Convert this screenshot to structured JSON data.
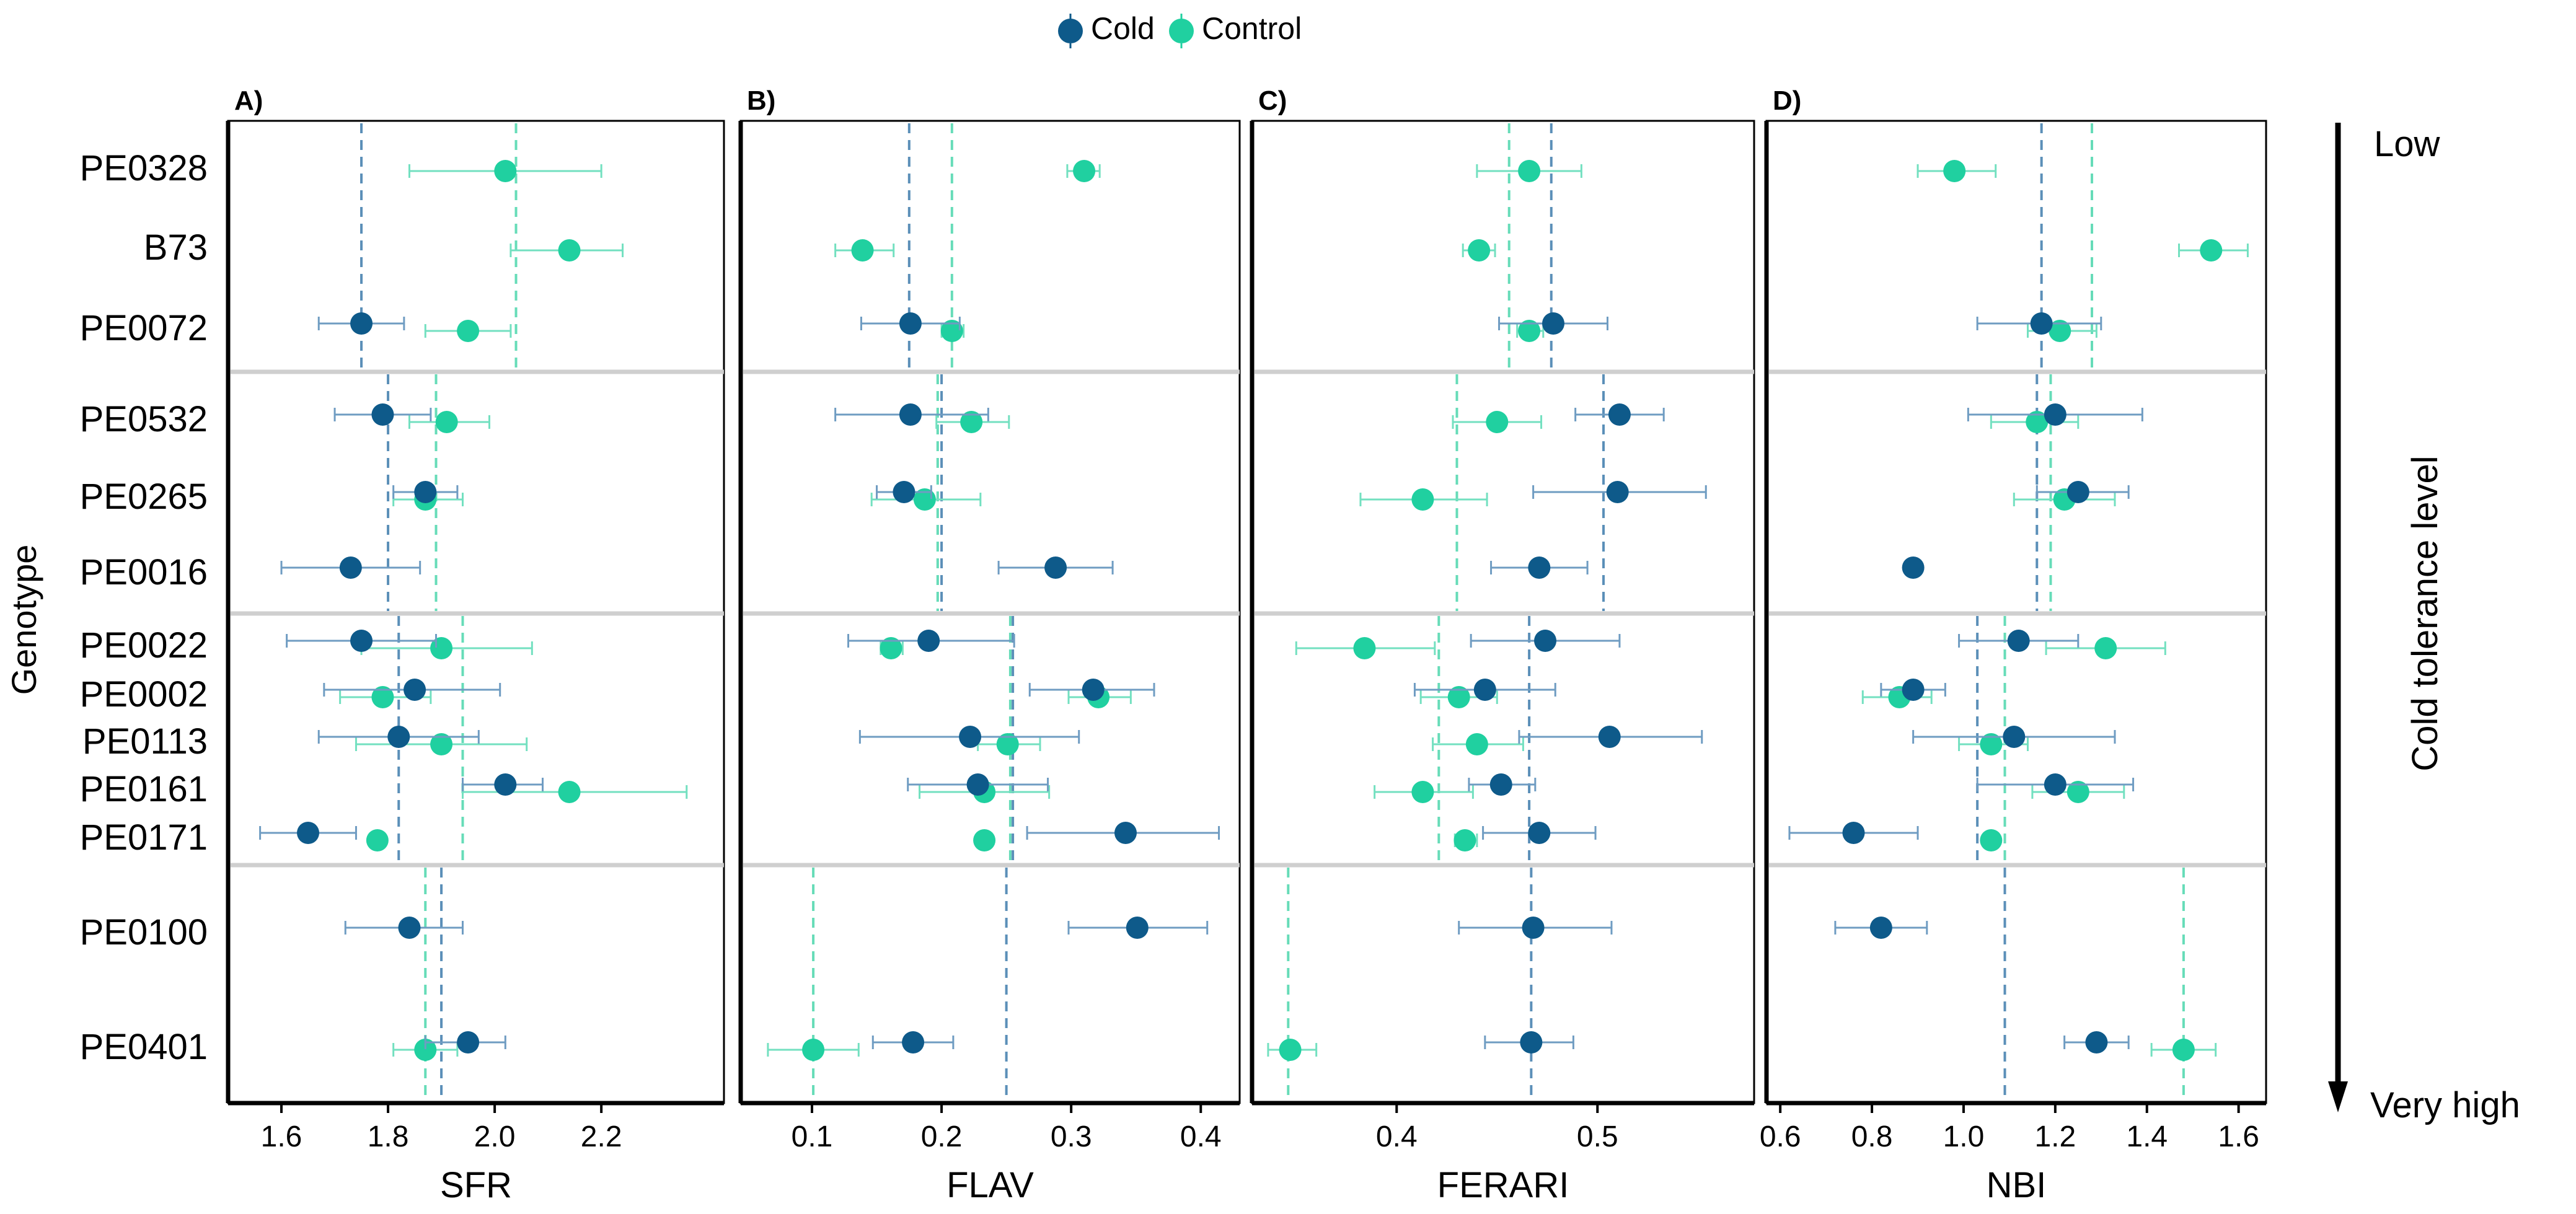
{
  "figure": {
    "legend": {
      "items": [
        {
          "label": "Cold",
          "color": "#0e5a8a"
        },
        {
          "label": "Control",
          "color": "#20d0a0"
        }
      ]
    },
    "y_axis_title": "Genotype",
    "side_axis": {
      "title": "Cold tolerance level",
      "top_label": "Low",
      "bottom_label": "Very high"
    }
  },
  "chart_data": {
    "type": "scatter",
    "genotypes": [
      "PE0328",
      "B73",
      "PE0072",
      "PE0532",
      "PE0265",
      "PE0016",
      "PE0022",
      "PE0002",
      "PE0113",
      "PE0161",
      "PE0171",
      "PE0100",
      "PE0401"
    ],
    "groups": [
      {
        "members": [
          "PE0328",
          "B73",
          "PE0072"
        ]
      },
      {
        "members": [
          "PE0532",
          "PE0265",
          "PE0016"
        ]
      },
      {
        "members": [
          "PE0022",
          "PE0002",
          "PE0113",
          "PE0161",
          "PE0171"
        ]
      },
      {
        "members": [
          "PE0100",
          "PE0401"
        ]
      }
    ],
    "panels": [
      {
        "tag": "A)",
        "xlabel": "SFR",
        "xlim": [
          1.5,
          2.43
        ],
        "ticks": [
          1.6,
          1.8,
          2.0,
          2.2
        ],
        "tick_labels": [
          "1.6",
          "1.8",
          "2.0",
          "2.2"
        ],
        "group_means": [
          {
            "cold": 1.75,
            "control": 2.04
          },
          {
            "cold": 1.8,
            "control": 1.89
          },
          {
            "cold": 1.82,
            "control": 1.94
          },
          {
            "cold": 1.9,
            "control": 1.87
          }
        ],
        "points": {
          "PE0328": {
            "control": [
              2.02,
              1.84,
              2.2
            ]
          },
          "B73": {
            "control": [
              2.14,
              2.03,
              2.24
            ]
          },
          "PE0072": {
            "cold": [
              1.75,
              1.67,
              1.83
            ],
            "control": [
              1.95,
              1.87,
              2.03
            ]
          },
          "PE0532": {
            "cold": [
              1.79,
              1.7,
              1.88
            ],
            "control": [
              1.91,
              1.84,
              1.99
            ]
          },
          "PE0265": {
            "cold": [
              1.87,
              1.81,
              1.93
            ],
            "control": [
              1.87,
              1.81,
              1.94
            ]
          },
          "PE0016": {
            "cold": [
              1.73,
              1.6,
              1.86
            ]
          },
          "PE0022": {
            "cold": [
              1.75,
              1.61,
              1.89
            ],
            "control": [
              1.9,
              1.75,
              2.07
            ]
          },
          "PE0002": {
            "cold": [
              1.85,
              1.68,
              2.01
            ],
            "control": [
              1.79,
              1.71,
              1.88
            ]
          },
          "PE0113": {
            "cold": [
              1.82,
              1.67,
              1.97
            ],
            "control": [
              1.9,
              1.74,
              2.06
            ]
          },
          "PE0161": {
            "cold": [
              2.02,
              1.94,
              2.09
            ],
            "control": [
              2.14,
              1.94,
              2.36
            ]
          },
          "PE0171": {
            "cold": [
              1.65,
              1.56,
              1.74
            ],
            "control": [
              1.78
            ]
          },
          "PE0100": {
            "cold": [
              1.84,
              1.72,
              1.94
            ]
          },
          "PE0401": {
            "cold": [
              1.95,
              1.87,
              2.02
            ],
            "control": [
              1.87,
              1.81,
              1.93
            ]
          }
        }
      },
      {
        "tag": "B)",
        "xlabel": "FLAV",
        "xlim": [
          0.045,
          0.43
        ],
        "ticks": [
          0.1,
          0.2,
          0.3,
          0.4
        ],
        "tick_labels": [
          "0.1",
          "0.2",
          "0.3",
          "0.4"
        ],
        "group_means": [
          {
            "cold": 0.175,
            "control": 0.208
          },
          {
            "cold": 0.2,
            "control": 0.197
          },
          {
            "cold": 0.255,
            "control": 0.253
          },
          {
            "cold": 0.25,
            "control": 0.101
          }
        ],
        "points": {
          "PE0328": {
            "control": [
              0.31,
              0.297,
              0.322
            ]
          },
          "B73": {
            "control": [
              0.139,
              0.118,
              0.163
            ]
          },
          "PE0072": {
            "cold": [
              0.176,
              0.138,
              0.214
            ],
            "control": [
              0.208,
              0.2,
              0.217
            ]
          },
          "PE0532": {
            "cold": [
              0.176,
              0.118,
              0.236
            ],
            "control": [
              0.223,
              0.196,
              0.252
            ]
          },
          "PE0265": {
            "cold": [
              0.171,
              0.15,
              0.192
            ],
            "control": [
              0.187,
              0.146,
              0.23
            ]
          },
          "PE0016": {
            "cold": [
              0.288,
              0.244,
              0.332
            ]
          },
          "PE0022": {
            "cold": [
              0.19,
              0.128,
              0.256
            ],
            "control": [
              0.161,
              0.153,
              0.17
            ]
          },
          "PE0002": {
            "cold": [
              0.317,
              0.268,
              0.364
            ],
            "control": [
              0.321,
              0.298,
              0.346
            ]
          },
          "PE0113": {
            "cold": [
              0.222,
              0.137,
              0.306
            ],
            "control": [
              0.251,
              0.228,
              0.276
            ]
          },
          "PE0161": {
            "cold": [
              0.228,
              0.174,
              0.282
            ],
            "control": [
              0.233,
              0.183,
              0.283
            ]
          },
          "PE0171": {
            "cold": [
              0.342,
              0.266,
              0.414
            ],
            "control": [
              0.233
            ]
          },
          "PE0100": {
            "cold": [
              0.351,
              0.298,
              0.405
            ]
          },
          "PE0401": {
            "cold": [
              0.178,
              0.147,
              0.209
            ],
            "control": [
              0.101,
              0.066,
              0.136
            ]
          }
        }
      },
      {
        "tag": "C)",
        "xlabel": "FERARI",
        "xlim": [
          0.328,
          0.578
        ],
        "ticks": [
          0.4,
          0.5
        ],
        "tick_labels": [
          "0.4",
          "0.5"
        ],
        "group_means": [
          {
            "cold": 0.477,
            "control": 0.456
          },
          {
            "cold": 0.503,
            "control": 0.43
          },
          {
            "cold": 0.466,
            "control": 0.421
          },
          {
            "cold": 0.467,
            "control": 0.346
          }
        ],
        "points": {
          "PE0328": {
            "control": [
              0.466,
              0.44,
              0.492
            ]
          },
          "B73": {
            "control": [
              0.441,
              0.433,
              0.449
            ]
          },
          "PE0072": {
            "cold": [
              0.478,
              0.451,
              0.505
            ],
            "control": [
              0.466,
              0.46,
              0.473
            ]
          },
          "PE0532": {
            "cold": [
              0.511,
              0.489,
              0.533
            ],
            "control": [
              0.45,
              0.428,
              0.472
            ]
          },
          "PE0265": {
            "cold": [
              0.51,
              0.468,
              0.554
            ],
            "control": [
              0.413,
              0.382,
              0.445
            ]
          },
          "PE0016": {
            "cold": [
              0.471,
              0.447,
              0.495
            ]
          },
          "PE0022": {
            "cold": [
              0.474,
              0.437,
              0.511
            ],
            "control": [
              0.384,
              0.35,
              0.419
            ]
          },
          "PE0002": {
            "cold": [
              0.444,
              0.409,
              0.479
            ],
            "control": [
              0.431,
              0.412,
              0.45
            ]
          },
          "PE0113": {
            "cold": [
              0.506,
              0.461,
              0.552
            ],
            "control": [
              0.44,
              0.418,
              0.463
            ]
          },
          "PE0161": {
            "cold": [
              0.452,
              0.436,
              0.469
            ],
            "control": [
              0.413,
              0.389,
              0.438
            ]
          },
          "PE0171": {
            "cold": [
              0.471,
              0.443,
              0.499
            ],
            "control": [
              0.434,
              0.429,
              0.44
            ]
          },
          "PE0100": {
            "cold": [
              0.468,
              0.431,
              0.507
            ]
          },
          "PE0401": {
            "cold": [
              0.467,
              0.444,
              0.488
            ],
            "control": [
              0.347,
              0.336,
              0.36
            ]
          }
        }
      },
      {
        "tag": "D)",
        "xlabel": "NBI",
        "xlim": [
          0.57,
          1.66
        ],
        "ticks": [
          0.6,
          0.8,
          1.0,
          1.2,
          1.4,
          1.6
        ],
        "tick_labels": [
          "0.6",
          "0.8",
          "1.0",
          "1.2",
          "1.4",
          "1.6"
        ],
        "group_means": [
          {
            "cold": 1.17,
            "control": 1.28
          },
          {
            "cold": 1.16,
            "control": 1.19
          },
          {
            "cold": 1.03,
            "control": 1.09
          },
          {
            "cold": 1.09,
            "control": 1.48
          }
        ],
        "points": {
          "PE0328": {
            "control": [
              0.98,
              0.9,
              1.07
            ]
          },
          "B73": {
            "control": [
              1.54,
              1.47,
              1.62
            ]
          },
          "PE0072": {
            "cold": [
              1.17,
              1.03,
              1.3
            ],
            "control": [
              1.21,
              1.14,
              1.29
            ]
          },
          "PE0532": {
            "cold": [
              1.2,
              1.01,
              1.39
            ],
            "control": [
              1.16,
              1.06,
              1.25
            ]
          },
          "PE0265": {
            "cold": [
              1.25,
              1.16,
              1.36
            ],
            "control": [
              1.22,
              1.11,
              1.33
            ]
          },
          "PE0016": {
            "cold": [
              0.89
            ]
          },
          "PE0022": {
            "cold": [
              1.12,
              0.99,
              1.25
            ],
            "control": [
              1.31,
              1.18,
              1.44
            ]
          },
          "PE0002": {
            "cold": [
              0.89,
              0.82,
              0.96
            ],
            "control": [
              0.86,
              0.78,
              0.93
            ]
          },
          "PE0113": {
            "cold": [
              1.11,
              0.89,
              1.33
            ],
            "control": [
              1.06,
              0.99,
              1.14
            ]
          },
          "PE0161": {
            "cold": [
              1.2,
              1.03,
              1.37
            ],
            "control": [
              1.25,
              1.15,
              1.35
            ]
          },
          "PE0171": {
            "cold": [
              0.76,
              0.62,
              0.9
            ],
            "control": [
              1.06
            ]
          },
          "PE0100": {
            "cold": [
              0.82,
              0.72,
              0.92
            ]
          },
          "PE0401": {
            "cold": [
              1.29,
              1.22,
              1.36
            ],
            "control": [
              1.48,
              1.41,
              1.55
            ]
          }
        }
      }
    ]
  }
}
